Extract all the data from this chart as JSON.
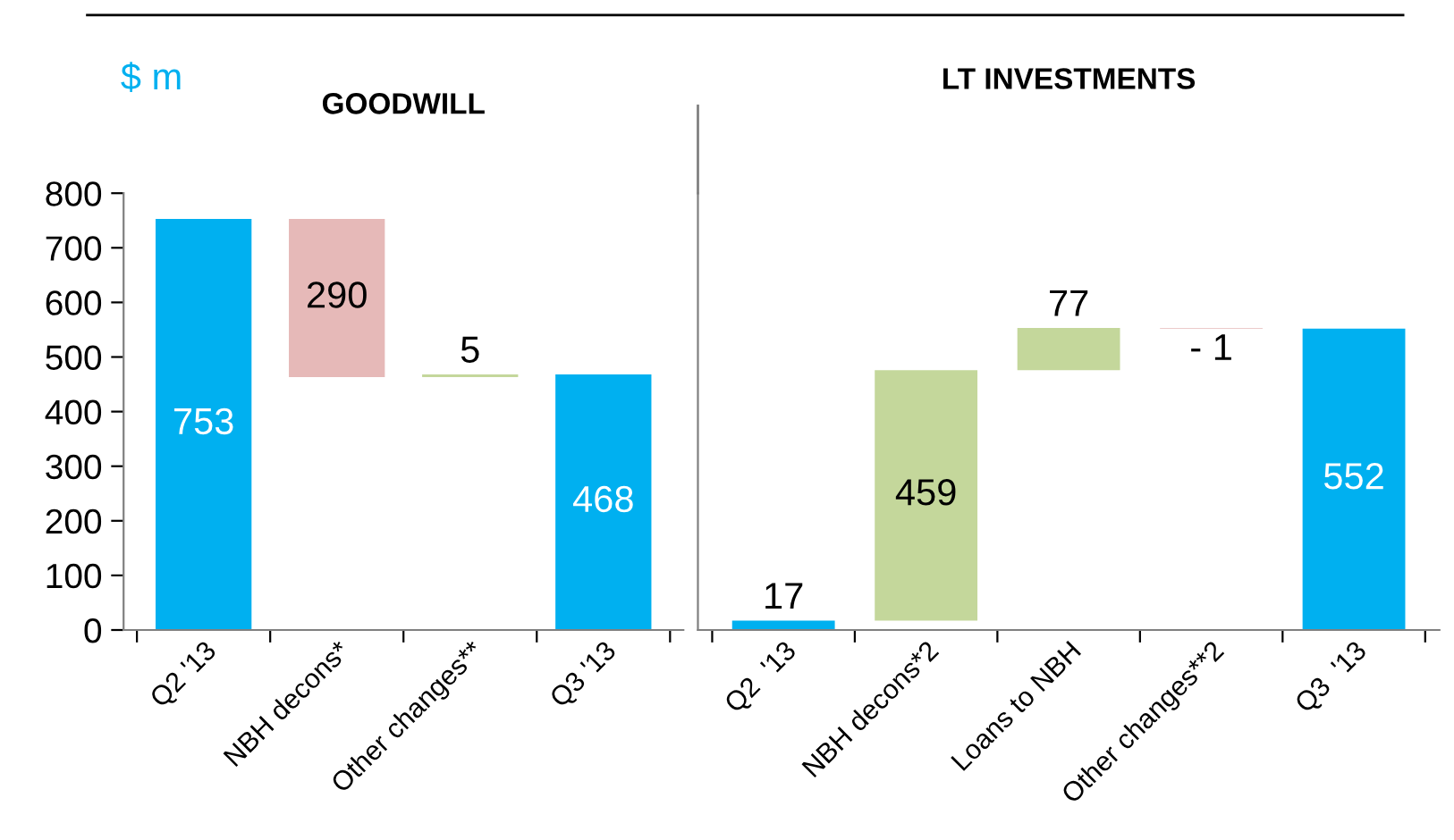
{
  "chart_data": [
    {
      "type": "bar",
      "title": "GOODWILL",
      "ylabel": "$ m",
      "categories": [
        "Q2 '13",
        "NBH decons*",
        "Other changes**",
        "Q3 '13"
      ],
      "values": [
        753,
        290,
        5,
        468
      ],
      "base": [
        0,
        463,
        463,
        0
      ],
      "colors": [
        "#00b0f0",
        "#e6b9b8",
        "#c4d79b",
        "#00b0f0"
      ],
      "value_labels": [
        "753",
        "290",
        "5",
        "468"
      ],
      "ylim": [
        0,
        800
      ],
      "yticks": [
        0,
        100,
        200,
        300,
        400,
        500,
        600,
        700,
        800
      ],
      "grid": false,
      "legend": false
    },
    {
      "type": "bar",
      "title": "LT INVESTMENTS",
      "categories": [
        "Q2  '13",
        "NBH decons*2",
        "Loans to NBH",
        "Other changes**2",
        "Q3  '13"
      ],
      "values": [
        17,
        459,
        77,
        -1,
        552
      ],
      "base": [
        0,
        17,
        476,
        553,
        0
      ],
      "colors": [
        "#00b0f0",
        "#c4d79b",
        "#c4d79b",
        "#e6b9b8",
        "#00b0f0"
      ],
      "value_labels": [
        "17",
        "459",
        "77",
        "- 1",
        "552"
      ],
      "ylim": [
        0,
        800
      ],
      "tick_labels": "x",
      "grid": false,
      "legend": false
    }
  ]
}
